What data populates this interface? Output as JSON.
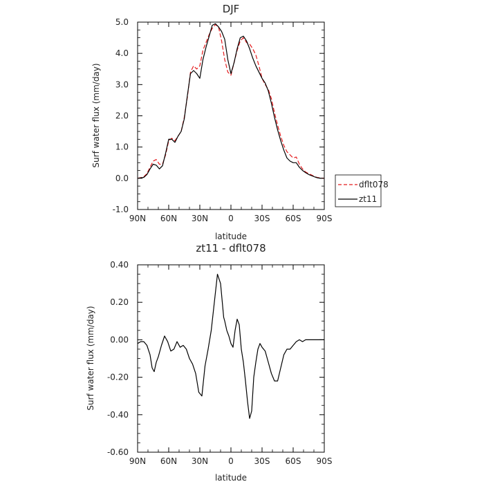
{
  "chart_data": [
    {
      "type": "line",
      "title": "DJF",
      "xlabel": "latitude",
      "ylabel": "Surf water flux (mm/day)",
      "xlim": [
        90,
        -90
      ],
      "ylim": [
        -1.0,
        5.0
      ],
      "xticks": [
        90,
        60,
        30,
        0,
        -30,
        -60,
        -90
      ],
      "xtick_labels": [
        "90N",
        "60N",
        "30N",
        "0",
        "30S",
        "60S",
        "90S"
      ],
      "yticks": [
        -1.0,
        0.0,
        1.0,
        2.0,
        3.0,
        4.0,
        5.0
      ],
      "ytick_labels": [
        "-1.0",
        "0.0",
        "1.0",
        "2.0",
        "3.0",
        "4.0",
        "5.0"
      ],
      "grid": false,
      "legend": "right",
      "series": [
        {
          "name": "dflt078",
          "color": "#e41a1c",
          "style": "dashed",
          "x": [
            90,
            87,
            84,
            81,
            78,
            75,
            72,
            69,
            66,
            63,
            60,
            57,
            54,
            51,
            48,
            45,
            42,
            39,
            36,
            33,
            30,
            27,
            24,
            21,
            18,
            15,
            12,
            9,
            6,
            3,
            0,
            -3,
            -6,
            -9,
            -12,
            -15,
            -18,
            -21,
            -24,
            -27,
            -30,
            -33,
            -36,
            -39,
            -42,
            -45,
            -48,
            -51,
            -54,
            -57,
            -60,
            -63,
            -66,
            -69,
            -72,
            -75,
            -78,
            -81,
            -84,
            -87,
            -90
          ],
          "y": [
            0.0,
            0.02,
            0.05,
            0.15,
            0.35,
            0.55,
            0.6,
            0.45,
            0.45,
            0.75,
            1.2,
            1.28,
            1.2,
            1.35,
            1.5,
            1.95,
            2.6,
            3.4,
            3.6,
            3.5,
            3.6,
            4.1,
            4.35,
            4.6,
            4.8,
            4.92,
            4.85,
            4.4,
            3.8,
            3.4,
            3.3,
            3.7,
            4.1,
            4.4,
            4.5,
            4.35,
            4.3,
            4.15,
            3.95,
            3.6,
            3.2,
            3.0,
            2.85,
            2.55,
            2.1,
            1.7,
            1.35,
            1.05,
            0.85,
            0.75,
            0.65,
            0.68,
            0.45,
            0.3,
            0.2,
            0.15,
            0.1,
            0.05,
            0.02,
            0.01,
            0.0
          ]
        },
        {
          "name": "zt11",
          "color": "#000000",
          "style": "solid",
          "x": [
            90,
            87,
            84,
            81,
            78,
            75,
            72,
            69,
            66,
            63,
            60,
            57,
            54,
            51,
            48,
            45,
            42,
            39,
            36,
            33,
            30,
            27,
            24,
            21,
            18,
            15,
            12,
            9,
            6,
            3,
            0,
            -3,
            -6,
            -9,
            -12,
            -15,
            -18,
            -21,
            -24,
            -27,
            -30,
            -33,
            -36,
            -39,
            -42,
            -45,
            -48,
            -51,
            -54,
            -57,
            -60,
            -63,
            -66,
            -69,
            -72,
            -75,
            -78,
            -81,
            -84,
            -87,
            -90
          ],
          "y": [
            0.0,
            0.01,
            0.03,
            0.12,
            0.3,
            0.45,
            0.42,
            0.3,
            0.4,
            0.8,
            1.25,
            1.25,
            1.15,
            1.35,
            1.5,
            1.9,
            2.65,
            3.35,
            3.45,
            3.35,
            3.2,
            3.8,
            4.2,
            4.55,
            4.9,
            4.95,
            4.85,
            4.7,
            4.45,
            3.8,
            3.35,
            3.7,
            4.15,
            4.5,
            4.55,
            4.4,
            4.15,
            3.85,
            3.6,
            3.4,
            3.2,
            3.05,
            2.8,
            2.4,
            1.95,
            1.55,
            1.2,
            0.9,
            0.65,
            0.55,
            0.5,
            0.5,
            0.35,
            0.25,
            0.18,
            0.12,
            0.08,
            0.04,
            0.01,
            0.0,
            0.0
          ]
        }
      ]
    },
    {
      "type": "line",
      "title": "zt11 - dflt078",
      "xlabel": "latitude",
      "ylabel": "Surf water flux (mm/day)",
      "xlim": [
        90,
        -90
      ],
      "ylim": [
        -0.6,
        0.4
      ],
      "xticks": [
        90,
        60,
        30,
        0,
        -30,
        -60,
        -90
      ],
      "xtick_labels": [
        "90N",
        "60N",
        "30N",
        "0",
        "30S",
        "60S",
        "90S"
      ],
      "yticks": [
        -0.6,
        -0.4,
        -0.2,
        0.0,
        0.2,
        0.4
      ],
      "ytick_labels": [
        "-0.60",
        "-0.40",
        "-0.20",
        "0.00",
        "0.20",
        "0.40"
      ],
      "grid": false,
      "series": [
        {
          "color": "#000000",
          "style": "solid",
          "x": [
            90,
            87,
            84,
            81,
            78,
            76,
            74,
            72,
            70,
            67,
            64,
            61,
            58,
            55,
            52,
            49,
            46,
            43,
            40,
            37,
            34,
            31,
            28,
            25,
            22,
            19,
            16,
            13,
            10,
            8,
            7,
            6,
            4,
            2,
            0,
            -2,
            -4,
            -6,
            -8,
            -10,
            -12,
            -14,
            -16,
            -18,
            -20,
            -22,
            -24,
            -26,
            -28,
            -30,
            -33,
            -36,
            -39,
            -42,
            -45,
            -48,
            -51,
            -54,
            -57,
            -60,
            -63,
            -66,
            -69,
            -72,
            -75,
            -78,
            -81,
            -84,
            -87,
            -90
          ],
          "y": [
            -0.02,
            -0.01,
            -0.01,
            -0.03,
            -0.08,
            -0.15,
            -0.17,
            -0.12,
            -0.09,
            -0.03,
            0.02,
            -0.01,
            -0.06,
            -0.05,
            -0.01,
            -0.04,
            -0.03,
            -0.05,
            -0.1,
            -0.13,
            -0.18,
            -0.28,
            -0.3,
            -0.14,
            -0.05,
            0.05,
            0.2,
            0.35,
            0.3,
            0.18,
            0.12,
            0.1,
            0.05,
            0.02,
            -0.02,
            -0.04,
            0.05,
            0.11,
            0.08,
            -0.05,
            -0.12,
            -0.22,
            -0.33,
            -0.42,
            -0.38,
            -0.2,
            -0.12,
            -0.05,
            -0.02,
            -0.04,
            -0.06,
            -0.12,
            -0.18,
            -0.22,
            -0.22,
            -0.15,
            -0.08,
            -0.05,
            -0.05,
            -0.03,
            -0.01,
            0.0,
            -0.01,
            0.0,
            0.0,
            0.0,
            0.0,
            0.0,
            0.0,
            0.0
          ]
        }
      ]
    }
  ]
}
